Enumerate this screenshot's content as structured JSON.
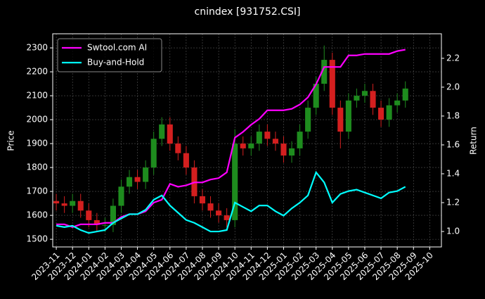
{
  "chart_data": {
    "type": "candlestick",
    "title": "cnindex [931752.CSI]",
    "y_label": "Price",
    "y2_label": "Return",
    "up_color": "#1e8c1e",
    "down_color": "#d41f1f",
    "x": [
      0,
      0.5,
      1,
      1.5,
      2,
      2.5,
      3,
      3.5,
      4,
      4.5,
      5,
      5.5,
      6,
      6.5,
      7,
      7.5,
      8,
      8.5,
      9,
      9.5,
      10,
      10.5,
      11,
      11.5,
      12,
      12.5,
      13,
      13.5,
      14,
      14.5,
      15,
      15.5,
      16,
      16.5,
      17,
      17.5,
      18,
      18.5,
      19,
      19.5,
      20,
      20.5,
      21,
      21.5
    ],
    "open": [
      1660,
      1650,
      1640,
      1660,
      1620,
      1580,
      1560,
      1560,
      1640,
      1720,
      1760,
      1740,
      1800,
      1920,
      1980,
      1900,
      1860,
      1800,
      1680,
      1650,
      1620,
      1600,
      1580,
      1900,
      1880,
      1900,
      1950,
      1920,
      1900,
      1850,
      1880,
      1950,
      2050,
      2150,
      2250,
      2050,
      1950,
      2080,
      2100,
      2120,
      2050,
      2000,
      2060,
      2080
    ],
    "high": [
      1690,
      1680,
      1690,
      1690,
      1650,
      1610,
      1590,
      1670,
      1750,
      1790,
      1790,
      1830,
      1950,
      2010,
      2010,
      1930,
      1890,
      1830,
      1710,
      1680,
      1650,
      1630,
      1960,
      1930,
      1930,
      1980,
      1980,
      1950,
      1930,
      1910,
      1980,
      2080,
      2180,
      2310,
      2280,
      2080,
      2110,
      2130,
      2150,
      2150,
      2080,
      2090,
      2110,
      2160
    ],
    "low": [
      1620,
      1610,
      1610,
      1590,
      1550,
      1530,
      1530,
      1530,
      1610,
      1690,
      1710,
      1710,
      1770,
      1890,
      1870,
      1830,
      1770,
      1650,
      1620,
      1590,
      1570,
      1550,
      1550,
      1850,
      1850,
      1870,
      1890,
      1870,
      1820,
      1820,
      1850,
      1920,
      2020,
      2120,
      2020,
      1880,
      1920,
      2050,
      2070,
      2020,
      1970,
      1970,
      2030,
      2050
    ],
    "close": [
      1650,
      1640,
      1660,
      1620,
      1580,
      1560,
      1560,
      1640,
      1720,
      1760,
      1740,
      1800,
      1920,
      1980,
      1900,
      1860,
      1800,
      1680,
      1650,
      1620,
      1600,
      1580,
      1900,
      1880,
      1900,
      1950,
      1920,
      1900,
      1850,
      1880,
      1950,
      2050,
      2150,
      2250,
      2050,
      1950,
      2080,
      2100,
      2120,
      2050,
      2000,
      2060,
      2080,
      2130
    ],
    "series": [
      {
        "name": "Swtool.com AI",
        "color": "#ff00ff",
        "axis": "y2",
        "values": [
          1.05,
          1.05,
          1.03,
          1.05,
          1.05,
          1.05,
          1.06,
          1.06,
          1.1,
          1.12,
          1.12,
          1.14,
          1.2,
          1.22,
          1.33,
          1.31,
          1.32,
          1.34,
          1.34,
          1.36,
          1.37,
          1.41,
          1.65,
          1.69,
          1.74,
          1.78,
          1.84,
          1.84,
          1.84,
          1.85,
          1.88,
          1.93,
          2.02,
          2.14,
          2.14,
          2.14,
          2.22,
          2.22,
          2.23,
          2.23,
          2.23,
          2.23,
          2.25,
          2.26
        ]
      },
      {
        "name": "Buy-and-Hold",
        "color": "#00ffff",
        "axis": "y2",
        "values": [
          1.04,
          1.03,
          1.04,
          1.01,
          0.99,
          1.0,
          1.01,
          1.06,
          1.09,
          1.12,
          1.12,
          1.15,
          1.22,
          1.25,
          1.18,
          1.13,
          1.08,
          1.06,
          1.03,
          1.0,
          1.0,
          1.01,
          1.2,
          1.17,
          1.14,
          1.18,
          1.18,
          1.14,
          1.11,
          1.16,
          1.2,
          1.25,
          1.41,
          1.34,
          1.2,
          1.26,
          1.28,
          1.29,
          1.27,
          1.25,
          1.23,
          1.27,
          1.28,
          1.31
        ]
      }
    ],
    "xlim": [
      -0.22,
      23.72
    ],
    "xticks": [
      {
        "value": 0,
        "label": "2023-11"
      },
      {
        "value": 1,
        "label": "2023-12"
      },
      {
        "value": 2,
        "label": "2024-01"
      },
      {
        "value": 3,
        "label": "2024-02"
      },
      {
        "value": 4,
        "label": "2024-03"
      },
      {
        "value": 5,
        "label": "2024-04"
      },
      {
        "value": 6,
        "label": "2024-05"
      },
      {
        "value": 7,
        "label": "2024-06"
      },
      {
        "value": 8,
        "label": "2024-07"
      },
      {
        "value": 9,
        "label": "2024-08"
      },
      {
        "value": 10,
        "label": "2024-09"
      },
      {
        "value": 11,
        "label": "2024-10"
      },
      {
        "value": 12,
        "label": "2024-11"
      },
      {
        "value": 13,
        "label": "2024-12"
      },
      {
        "value": 14,
        "label": "2025-01"
      },
      {
        "value": 15,
        "label": "2025-02"
      },
      {
        "value": 16,
        "label": "2025-03"
      },
      {
        "value": 17,
        "label": "2025-04"
      },
      {
        "value": 18,
        "label": "2025-05"
      },
      {
        "value": 19,
        "label": "2025-06"
      },
      {
        "value": 20,
        "label": "2025-07"
      },
      {
        "value": 21,
        "label": "2025-08"
      },
      {
        "value": 22,
        "label": "2025-09"
      },
      {
        "value": 23,
        "label": "2025-10"
      }
    ],
    "ylim": [
      1468,
      2359
    ],
    "yticks": [
      1500,
      1600,
      1700,
      1800,
      1900,
      2000,
      2100,
      2200,
      2300
    ],
    "y2lim": [
      0.893,
      2.37
    ],
    "y2ticks": [
      {
        "value": 1.0,
        "label": "1.0"
      },
      1.2,
      1.4,
      1.6,
      1.8,
      {
        "value": 2.0,
        "label": "2.0"
      },
      2.2
    ],
    "grid": true,
    "legend": "upper left"
  }
}
